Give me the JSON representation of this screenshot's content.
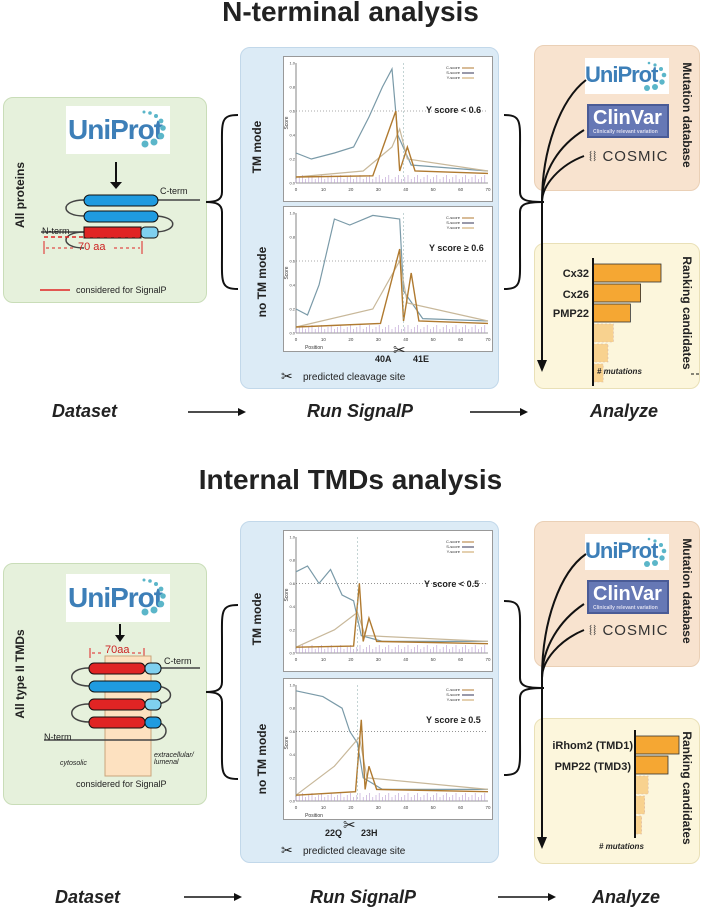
{
  "top": {
    "title": "N-terminal analysis",
    "dataset_label": "All proteins",
    "cterm": "C-term",
    "nterm": "N-term",
    "aa_label": "70 aa",
    "legend": "considered for SignalP",
    "tm_mode": "TM mode",
    "no_tm_mode": "no TM mode",
    "y_tm": "Y score < 0.6",
    "y_notm": "Y score ≥ 0.6",
    "cleave_left": "40A",
    "cleave_right": "41E",
    "cleave_note": "predicted cleavage site",
    "mutation_db": "Mutation database",
    "ranking": "Ranking candidates",
    "candidates": [
      {
        "name": "Cx32",
        "value": 1.0
      },
      {
        "name": "Cx26",
        "value": 0.7
      },
      {
        "name": "PMP22",
        "value": 0.55
      }
    ],
    "mutations": "# mutations"
  },
  "bottom": {
    "title": "Internal TMDs analysis",
    "dataset_label": "All type II TMDs",
    "cterm": "C-term",
    "nterm": "N-term",
    "aa_label": "70aa",
    "cytosolic": "cytosolic",
    "extracellular": "extracellular/\nlumenal",
    "legend": "considered for SignalP",
    "tm_mode": "TM mode",
    "no_tm_mode": "no TM mode",
    "y_tm": "Y score < 0.5",
    "y_notm": "Y score ≥ 0.5",
    "cleave_left": "22Q",
    "cleave_right": "23H",
    "cleave_note": "predicted cleavage site",
    "mutation_db": "Mutation database",
    "ranking": "Ranking candidates",
    "candidates": [
      {
        "name": "iRhom2 (TMD1)",
        "value": 1.0
      },
      {
        "name": "PMP22 (TMD3)",
        "value": 0.75
      }
    ],
    "mutations": "# mutations"
  },
  "stages": {
    "dataset": "Dataset",
    "run": "Run SignalP",
    "analyze": "Analyze"
  },
  "db": {
    "uniprot": "UniProt",
    "clinvar": "ClinVar",
    "clinvar_sub": "Clinically relevant variation",
    "cosmic": "COSMIC"
  },
  "plot_legend": {
    "c": "C-score",
    "s": "S-score",
    "y": "Y-score"
  },
  "axis": {
    "score": "Score",
    "position": "Position",
    "xticks": [
      "0",
      "10",
      "20",
      "30",
      "40",
      "50",
      "60",
      "70"
    ],
    "yticks": [
      "0.0",
      "0.2",
      "0.4",
      "0.6",
      "0.8",
      "1.0"
    ]
  },
  "colors": {
    "green": "#e6f1dc",
    "blue": "#dcebf6",
    "peach": "#f8e3cf",
    "cream": "#fcf6dc",
    "bar": "#f5a733",
    "tm_red": "#e02424",
    "tm_blue": "#1f9be0",
    "tm_light": "#7fd0ef",
    "c_score": "#b07a30",
    "s_score": "#7a9aa8",
    "y_score": "#c8b89a"
  }
}
